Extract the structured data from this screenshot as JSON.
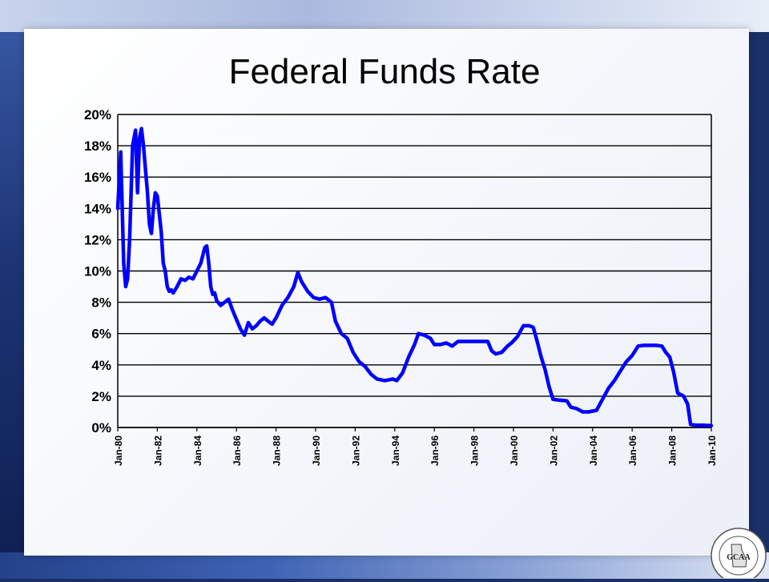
{
  "slide": {
    "title": "Federal Funds Rate"
  },
  "logo": {
    "text": "GCAA",
    "ring_text": "GEORGIA CONSTRUCTION AGGREGATE ASSOCIATION"
  },
  "colors": {
    "line": "#0000ff",
    "grid": "#000000"
  },
  "chart_data": {
    "type": "line",
    "title": "Federal Funds Rate",
    "xlabel": "",
    "ylabel": "",
    "ylim": [
      0,
      20
    ],
    "y_ticks": [
      "0%",
      "2%",
      "4%",
      "6%",
      "8%",
      "10%",
      "12%",
      "14%",
      "16%",
      "18%",
      "20%"
    ],
    "x_ticks": [
      "Jan-80",
      "Jan-82",
      "Jan-84",
      "Jan-86",
      "Jan-88",
      "Jan-90",
      "Jan-92",
      "Jan-94",
      "Jan-96",
      "Jan-98",
      "Jan-00",
      "Jan-02",
      "Jan-04",
      "Jan-06",
      "Jan-08",
      "Jan-10"
    ],
    "grid": "horizontal",
    "legend": "none",
    "series": [
      {
        "x": [
          1980.0,
          1980.15,
          1980.3,
          1980.4,
          1980.5,
          1980.6,
          1980.75,
          1980.9,
          1981.0,
          1981.1,
          1981.2,
          1981.3,
          1981.4,
          1981.5,
          1981.6,
          1981.7,
          1981.8,
          1981.9,
          1982.0,
          1982.2,
          1982.3,
          1982.4,
          1982.5,
          1982.6,
          1982.7,
          1982.8,
          1983.0,
          1983.2,
          1983.4,
          1983.6,
          1983.8,
          1984.0,
          1984.2,
          1984.4,
          1984.5,
          1984.6,
          1984.7,
          1984.8,
          1984.9,
          1985.0,
          1985.2,
          1985.4,
          1985.6,
          1985.8,
          1986.0,
          1986.2,
          1986.4,
          1986.6,
          1986.8,
          1987.0,
          1987.2,
          1987.4,
          1987.6,
          1987.8,
          1988.0,
          1988.3,
          1988.6,
          1988.9,
          1989.1,
          1989.3,
          1989.6,
          1989.9,
          1990.2,
          1990.5,
          1990.8,
          1991.0,
          1991.3,
          1991.6,
          1991.9,
          1992.2,
          1992.5,
          1992.8,
          1993.1,
          1993.5,
          1993.9,
          1994.1,
          1994.4,
          1994.7,
          1995.0,
          1995.2,
          1995.5,
          1995.8,
          1996.0,
          1996.3,
          1996.6,
          1996.9,
          1997.2,
          1997.5,
          1997.8,
          1998.1,
          1998.4,
          1998.7,
          1998.9,
          1999.1,
          1999.4,
          1999.7,
          1999.9,
          2000.2,
          2000.5,
          2000.8,
          2001.0,
          2001.2,
          2001.4,
          2001.6,
          2001.8,
          2002.0,
          2002.3,
          2002.7,
          2002.9,
          2003.2,
          2003.5,
          2003.8,
          2004.2,
          2004.5,
          2004.8,
          2005.1,
          2005.4,
          2005.7,
          2006.0,
          2006.3,
          2006.6,
          2006.9,
          2007.2,
          2007.5,
          2007.7,
          2007.9,
          2008.1,
          2008.3,
          2008.6,
          2008.8,
          2008.95,
          2009.2,
          2009.6,
          2010.0
        ],
        "values": [
          14.0,
          17.6,
          10.5,
          9.0,
          9.5,
          12.0,
          18.0,
          19.0,
          15.0,
          18.5,
          19.1,
          18.0,
          16.5,
          15.0,
          13.0,
          12.4,
          14.0,
          15.0,
          14.8,
          12.5,
          10.5,
          10.0,
          9.0,
          8.7,
          8.8,
          8.6,
          9.0,
          9.5,
          9.4,
          9.6,
          9.5,
          10.0,
          10.5,
          11.5,
          11.6,
          10.5,
          9.0,
          8.5,
          8.6,
          8.1,
          7.8,
          8.0,
          8.2,
          7.5,
          6.9,
          6.3,
          5.9,
          6.7,
          6.3,
          6.5,
          6.8,
          7.0,
          6.8,
          6.6,
          7.0,
          7.8,
          8.3,
          9.0,
          9.9,
          9.3,
          8.7,
          8.3,
          8.2,
          8.3,
          8.0,
          6.8,
          6.0,
          5.7,
          4.8,
          4.2,
          3.9,
          3.4,
          3.1,
          3.0,
          3.1,
          3.0,
          3.5,
          4.5,
          5.3,
          6.0,
          5.9,
          5.7,
          5.3,
          5.3,
          5.4,
          5.2,
          5.5,
          5.5,
          5.5,
          5.5,
          5.5,
          5.5,
          4.9,
          4.7,
          4.8,
          5.2,
          5.4,
          5.8,
          6.5,
          6.5,
          6.4,
          5.5,
          4.5,
          3.7,
          2.6,
          1.8,
          1.75,
          1.7,
          1.3,
          1.2,
          1.0,
          1.0,
          1.1,
          1.8,
          2.5,
          3.0,
          3.6,
          4.2,
          4.6,
          5.2,
          5.25,
          5.25,
          5.25,
          5.2,
          4.8,
          4.5,
          3.5,
          2.2,
          2.0,
          1.5,
          0.2,
          0.15,
          0.15,
          0.12
        ]
      }
    ]
  }
}
